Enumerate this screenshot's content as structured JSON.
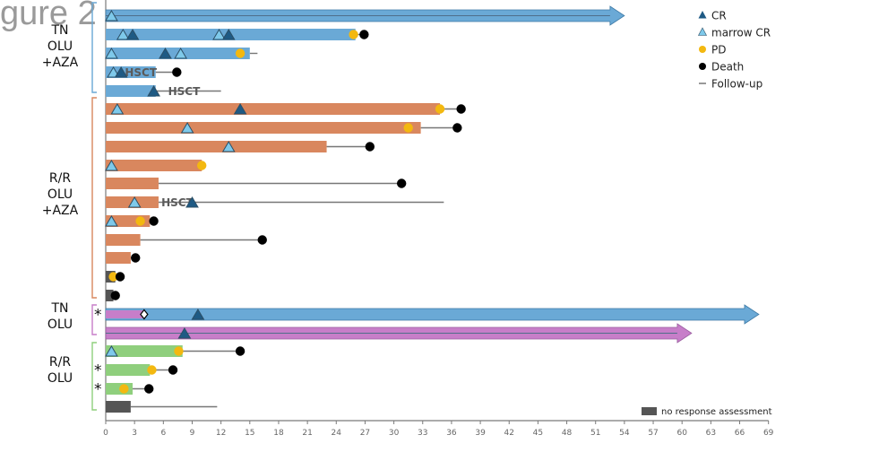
{
  "figure_label": "gure 2",
  "chart_data": {
    "type": "swimmer",
    "x_ticks": [
      0,
      3,
      6,
      9,
      12,
      15,
      18,
      21,
      24,
      27,
      30,
      33,
      36,
      39,
      42,
      45,
      48,
      51,
      54,
      57,
      60,
      63,
      66,
      69
    ],
    "xlim": [
      0,
      69
    ],
    "colors": {
      "tn_olu_aza": "#6aa9d6",
      "rr_olu_aza": "#d9875e",
      "tn_olu": "#c77ec9",
      "rr_olu": "#8fcf7d",
      "no_response": "#555555",
      "cr": "#1e5a84",
      "marrow_cr": "#7ec9ea",
      "pd": "#f3b810",
      "death": "#000000",
      "followup": "#777777"
    },
    "group_labels": [
      {
        "id": "tn-olu-aza",
        "lines": [
          "TN",
          "OLU",
          "+AZA"
        ]
      },
      {
        "id": "rr-olu-aza",
        "lines": [
          "R/R",
          "OLU",
          "+AZA"
        ]
      },
      {
        "id": "tn-olu",
        "lines": [
          "TN",
          "OLU"
        ]
      },
      {
        "id": "rr-olu",
        "lines": [
          "R/R",
          "OLU"
        ]
      }
    ],
    "legend": [
      {
        "label": "CR",
        "marker": "triangle-dark"
      },
      {
        "label": "marrow CR",
        "marker": "triangle-light"
      },
      {
        "label": "PD",
        "marker": "circle-yellow"
      },
      {
        "label": "Death",
        "marker": "circle-black"
      },
      {
        "label": "Follow-up",
        "marker": "line"
      }
    ],
    "no_response_label": "no response assessment",
    "hsct_label": "HSCT",
    "star": "*",
    "patients": [
      {
        "group": "tn_olu_aza",
        "bar": 54,
        "arrow": true,
        "followup": null,
        "marrow_cr": [
          0.6
        ],
        "cr": [],
        "pd": null,
        "death": null
      },
      {
        "group": "tn_olu_aza",
        "bar": 26,
        "arrow": false,
        "followup": 26.5,
        "marrow_cr": [
          1.8,
          11.8
        ],
        "cr": [
          2.8,
          12.8
        ],
        "pd": 25.8,
        "death": 26.9
      },
      {
        "group": "tn_olu_aza",
        "bar": 15,
        "arrow": false,
        "followup": 15.8,
        "marrow_cr": [
          0.6,
          7.8
        ],
        "cr": [
          6.2
        ],
        "pd": 14,
        "death": null
      },
      {
        "group": "tn_olu_aza",
        "bar": 5.2,
        "arrow": false,
        "followup": 7.4,
        "marrow_cr": [
          0.8
        ],
        "cr": [
          1.6
        ],
        "pd": null,
        "death": 7.4,
        "hsct": 1.9
      },
      {
        "group": "tn_olu_aza",
        "bar": 5.2,
        "arrow": false,
        "followup": 12,
        "marrow_cr": [],
        "cr": [
          5
        ],
        "pd": null,
        "death": null,
        "hsct": 6.4
      },
      {
        "group": "rr_olu_aza",
        "bar": 34.8,
        "arrow": false,
        "followup": 37,
        "marrow_cr": [
          1.2
        ],
        "cr": [
          14
        ],
        "pd": 34.8,
        "death": 37
      },
      {
        "group": "rr_olu_aza",
        "bar": 32.8,
        "arrow": false,
        "followup": 36.6,
        "marrow_cr": [
          8.5
        ],
        "cr": [],
        "pd": 31.5,
        "death": 36.6
      },
      {
        "group": "rr_olu_aza",
        "bar": 23,
        "arrow": false,
        "followup": 27.5,
        "marrow_cr": [
          12.8
        ],
        "cr": [],
        "pd": null,
        "death": 27.5
      },
      {
        "group": "rr_olu_aza",
        "bar": 10,
        "arrow": false,
        "followup": null,
        "marrow_cr": [
          0.6
        ],
        "cr": [],
        "pd": 10,
        "death": null
      },
      {
        "group": "rr_olu_aza",
        "bar": 5.5,
        "arrow": false,
        "followup": 30.8,
        "marrow_cr": [],
        "cr": [],
        "pd": null,
        "death": 30.8
      },
      {
        "group": "rr_olu_aza",
        "bar": 5.5,
        "arrow": false,
        "followup": 35.2,
        "marrow_cr": [
          3
        ],
        "cr": [
          9
        ],
        "pd": null,
        "death": null,
        "hsct": 5.7
      },
      {
        "group": "rr_olu_aza",
        "bar": 4.6,
        "arrow": false,
        "followup": 5,
        "marrow_cr": [
          0.6
        ],
        "cr": [],
        "pd": 3.6,
        "death": 5
      },
      {
        "group": "rr_olu_aza",
        "bar": 3.6,
        "arrow": false,
        "followup": 16.3,
        "marrow_cr": [],
        "cr": [],
        "pd": null,
        "death": 16.3
      },
      {
        "group": "rr_olu_aza",
        "bar": 2.6,
        "arrow": false,
        "followup": 3.1,
        "marrow_cr": [],
        "cr": [],
        "pd": null,
        "death": 3.1
      },
      {
        "group": "no_response",
        "bar": 1.0,
        "arrow": false,
        "followup": 1.5,
        "marrow_cr": [],
        "cr": [],
        "pd": 0.8,
        "death": 1.5
      },
      {
        "group": "no_response",
        "bar": 0.8,
        "arrow": false,
        "followup": 1.0,
        "marrow_cr": [],
        "cr": [],
        "pd": null,
        "death": 1.0
      },
      {
        "group": "tn_olu",
        "bar": 4,
        "arrow": true,
        "arrow_group": "tn_olu_aza",
        "arrow_end": 68,
        "followup": null,
        "marrow_cr": [],
        "cr": [
          9.6
        ],
        "pd": null,
        "death": null,
        "diamond": 4,
        "star": true
      },
      {
        "group": "tn_olu",
        "bar": 61,
        "arrow": true,
        "followup": null,
        "marrow_cr": [],
        "cr": [
          8.2
        ],
        "pd": null,
        "death": null
      },
      {
        "group": "rr_olu",
        "bar": 8,
        "arrow": false,
        "followup": 14,
        "marrow_cr": [
          0.6
        ],
        "cr": [],
        "pd": 7.6,
        "death": 14
      },
      {
        "group": "rr_olu",
        "bar": 4.6,
        "arrow": false,
        "followup": 7,
        "marrow_cr": [],
        "cr": [],
        "pd": 4.8,
        "death": 7,
        "star": true
      },
      {
        "group": "rr_olu",
        "bar": 2.8,
        "arrow": false,
        "followup": 4.5,
        "marrow_cr": [],
        "cr": [],
        "pd": 1.9,
        "death": 4.5,
        "star": true
      },
      {
        "group": "no_response",
        "bar": 2.6,
        "arrow": false,
        "followup": 11.6,
        "marrow_cr": [],
        "cr": [],
        "pd": null,
        "death": null
      }
    ]
  }
}
